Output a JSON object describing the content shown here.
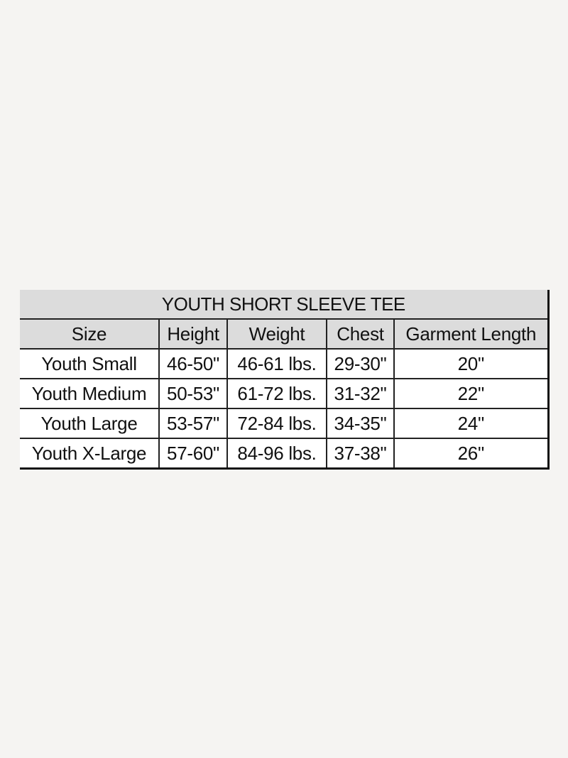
{
  "table": {
    "title": "YOUTH SHORT SLEEVE TEE",
    "headers": [
      "Size",
      "Height",
      "Weight",
      "Chest",
      "Garment Length"
    ],
    "rows": [
      [
        "Youth Small",
        "46-50\"",
        "46-61 lbs.",
        "29-30\"",
        "20\""
      ],
      [
        "Youth Medium",
        "50-53\"",
        "61-72 lbs.",
        "31-32\"",
        "22\""
      ],
      [
        "Youth Large",
        "53-57\"",
        "72-84 lbs.",
        "34-35\"",
        "24\""
      ],
      [
        "Youth X-Large",
        "57-60\"",
        "84-96 lbs.",
        "37-38\"",
        "26\""
      ]
    ],
    "colors": {
      "header_fill": "#dcdcdc",
      "cell_fill": "#ffffff",
      "border": "#222222",
      "page_background": "#f5f4f2"
    }
  }
}
